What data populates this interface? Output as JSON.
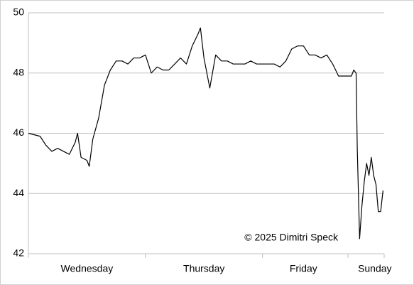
{
  "chart_data": {
    "type": "line",
    "annotation": "© 2025 Dimitri Speck",
    "x": [
      0,
      0.1,
      0.15,
      0.2,
      0.25,
      0.3,
      0.35,
      0.4,
      0.42,
      0.45,
      0.5,
      0.52,
      0.55,
      0.6,
      0.65,
      0.7,
      0.75,
      0.8,
      0.85,
      0.9,
      0.95,
      1.0,
      1.05,
      1.1,
      1.15,
      1.2,
      1.25,
      1.3,
      1.35,
      1.4,
      1.45,
      1.47,
      1.5,
      1.55,
      1.6,
      1.65,
      1.7,
      1.75,
      1.8,
      1.85,
      1.9,
      1.95,
      2.0,
      2.05,
      2.1,
      2.15,
      2.2,
      2.25,
      2.3,
      2.35,
      2.4,
      2.45,
      2.5,
      2.55,
      2.6,
      2.65,
      2.7,
      2.72,
      2.74,
      2.76,
      2.78,
      2.8,
      2.81,
      2.83,
      2.85,
      2.87,
      2.89,
      2.91,
      2.93,
      2.95,
      2.97,
      2.99,
      3.01,
      3.03
    ],
    "series": [
      {
        "color": "#000000",
        "values": [
          46.0,
          45.9,
          45.6,
          45.4,
          45.5,
          45.4,
          45.3,
          45.7,
          46.0,
          45.2,
          45.1,
          44.9,
          45.8,
          46.5,
          47.6,
          48.1,
          48.4,
          48.4,
          48.3,
          48.5,
          48.5,
          48.6,
          48.0,
          48.2,
          48.1,
          48.1,
          48.3,
          48.5,
          48.3,
          48.9,
          49.3,
          49.5,
          48.5,
          47.5,
          48.6,
          48.4,
          48.4,
          48.3,
          48.3,
          48.3,
          48.4,
          48.3,
          48.3,
          48.3,
          48.3,
          48.2,
          48.4,
          48.8,
          48.9,
          48.9,
          48.6,
          48.6,
          48.5,
          48.6,
          48.3,
          47.9,
          47.9,
          47.9,
          47.9,
          47.9,
          48.1,
          48.0,
          45.5,
          42.5,
          43.6,
          44.4,
          45.0,
          44.6,
          45.2,
          44.6,
          44.3,
          43.4,
          43.4,
          44.1
        ]
      }
    ],
    "xlim": [
      0,
      3.04
    ],
    "xticks": [
      0,
      1,
      2,
      2.73,
      3.04
    ],
    "xtick_labels": [
      {
        "value": 0.5,
        "label": "Wednesday"
      },
      {
        "value": 1.5,
        "label": "Thursday"
      },
      {
        "value": 2.35,
        "label": "Friday"
      },
      {
        "value": 2.96,
        "label": "Sunday"
      }
    ],
    "ylim": [
      42,
      50
    ],
    "yticks": [
      42,
      44,
      46,
      48,
      50
    ],
    "grid": true
  }
}
